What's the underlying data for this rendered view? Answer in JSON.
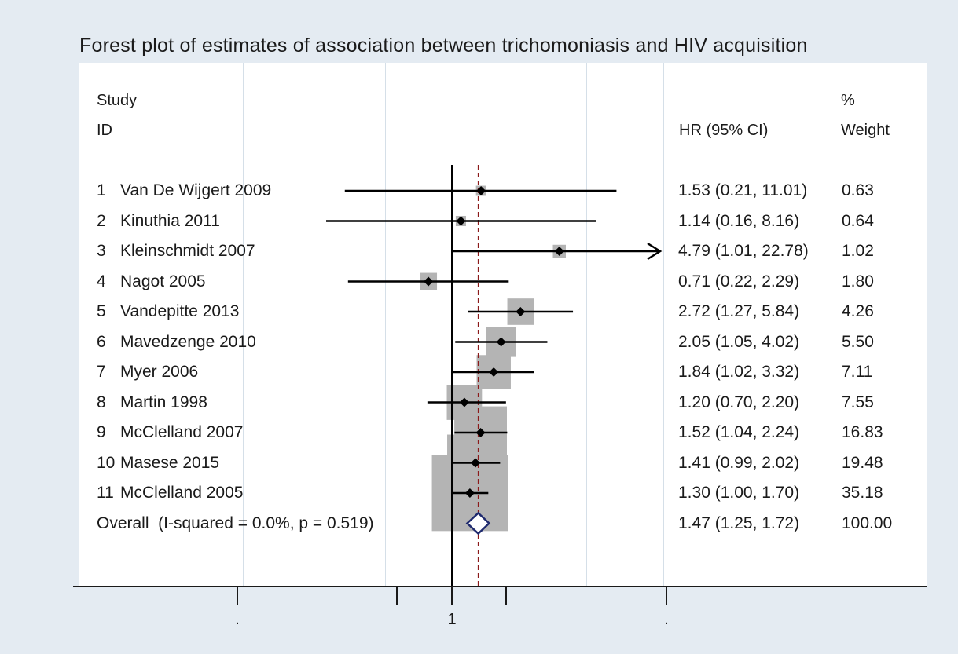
{
  "chart_data": {
    "type": "forest",
    "title": "Forest plot of estimates of association between trichomoniasis and HIV acquisition",
    "header": {
      "study_line1": "Study",
      "study_line2": "ID",
      "estimate": "HR (95% CI)",
      "weight_line1": "%",
      "weight_line2": "Weight"
    },
    "x_axis": {
      "scale": "log",
      "ticks": [
        {
          "value": 0.0439,
          "label": "."
        },
        {
          "value": 0.45,
          "label": ""
        },
        {
          "value": 1,
          "label": "1"
        },
        {
          "value": 2.2,
          "label": ""
        },
        {
          "value": 22.8,
          "label": "."
        }
      ]
    },
    "null_line": 1,
    "studies": [
      {
        "num": "1",
        "name": "Van De Wijgert 2009",
        "hr": 1.53,
        "lo": 0.21,
        "hi": 11.01,
        "ci_text": "1.53 (0.21, 11.01)",
        "weight": 0.63,
        "weight_text": "0.63"
      },
      {
        "num": "2",
        "name": "Kinuthia 2011",
        "hr": 1.14,
        "lo": 0.16,
        "hi": 8.16,
        "ci_text": "1.14 (0.16, 8.16)",
        "weight": 0.64,
        "weight_text": "0.64"
      },
      {
        "num": "3",
        "name": "Kleinschmidt 2007",
        "hr": 4.79,
        "lo": 1.01,
        "hi": 22.78,
        "ci_text": "4.79 (1.01, 22.78)",
        "weight": 1.02,
        "weight_text": "1.02",
        "arrow_right": true
      },
      {
        "num": "4",
        "name": "Nagot 2005",
        "hr": 0.71,
        "lo": 0.22,
        "hi": 2.29,
        "ci_text": "0.71 (0.22, 2.29)",
        "weight": 1.8,
        "weight_text": "1.80"
      },
      {
        "num": "5",
        "name": "Vandepitte 2013",
        "hr": 2.72,
        "lo": 1.27,
        "hi": 5.84,
        "ci_text": "2.72 (1.27, 5.84)",
        "weight": 4.26,
        "weight_text": "4.26"
      },
      {
        "num": "6",
        "name": "Mavedzenge 2010",
        "hr": 2.05,
        "lo": 1.05,
        "hi": 4.02,
        "ci_text": "2.05 (1.05, 4.02)",
        "weight": 5.5,
        "weight_text": "5.50"
      },
      {
        "num": "7",
        "name": "Myer 2006",
        "hr": 1.84,
        "lo": 1.02,
        "hi": 3.32,
        "ci_text": "1.84 (1.02, 3.32)",
        "weight": 7.11,
        "weight_text": "7.11"
      },
      {
        "num": "8",
        "name": "Martin 1998",
        "hr": 1.2,
        "lo": 0.7,
        "hi": 2.2,
        "ci_text": "1.20 (0.70, 2.20)",
        "weight": 7.55,
        "weight_text": "7.55"
      },
      {
        "num": "9",
        "name": "McClelland 2007",
        "hr": 1.52,
        "lo": 1.04,
        "hi": 2.24,
        "ci_text": "1.52 (1.04, 2.24)",
        "weight": 16.83,
        "weight_text": "16.83"
      },
      {
        "num": "10",
        "name": "Masese 2015",
        "hr": 1.41,
        "lo": 0.99,
        "hi": 2.02,
        "ci_text": "1.41 (0.99, 2.02)",
        "weight": 19.48,
        "weight_text": "19.48"
      },
      {
        "num": "11",
        "name": "McClelland 2005",
        "hr": 1.3,
        "lo": 1.0,
        "hi": 1.7,
        "ci_text": "1.30 (1.00, 1.70)",
        "weight": 35.18,
        "weight_text": "35.18"
      }
    ],
    "overall": {
      "label": "Overall  (I-squared = 0.0%, p = 0.519)",
      "hr": 1.47,
      "lo": 1.25,
      "hi": 1.72,
      "ci_text": "1.47 (1.25, 1.72)",
      "weight_text": "100.00"
    },
    "colors": {
      "background": "#e4ebf2",
      "panel": "#ffffff",
      "weight_box": "#b4b4b4",
      "ci_line": "#000000",
      "null_line": "#000000",
      "overall_line": "#8b1a1a",
      "diamond": "#1f2a6e"
    }
  }
}
